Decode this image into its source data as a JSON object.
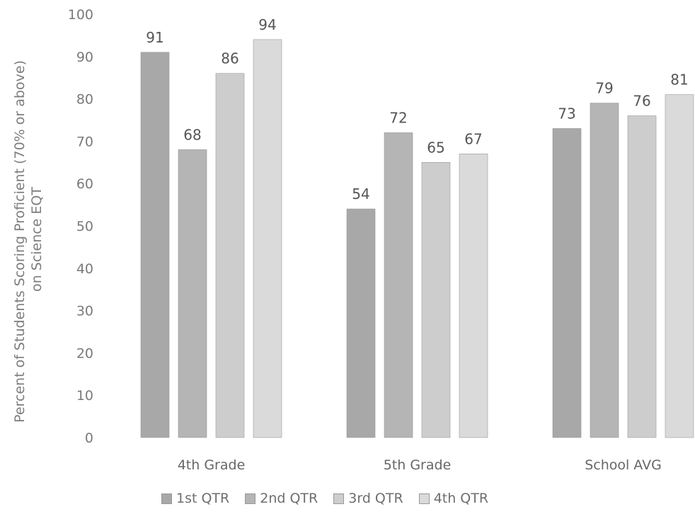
{
  "chart_data": {
    "type": "bar",
    "ylabel": [
      "Percent of Students Scoring Proficient (70% or above)",
      "on Science EQT"
    ],
    "ylim": [
      0,
      100
    ],
    "yticks": [
      0,
      10,
      20,
      30,
      40,
      50,
      60,
      70,
      80,
      90,
      100
    ],
    "categories": [
      "4th Grade",
      "5th Grade",
      "School AVG"
    ],
    "series": [
      {
        "name": "1st QTR",
        "values": [
          91,
          54,
          73
        ],
        "color": "#a8a8a8"
      },
      {
        "name": "2nd QTR",
        "values": [
          68,
          72,
          79
        ],
        "color": "#b5b5b5"
      },
      {
        "name": "3rd QTR",
        "values": [
          86,
          65,
          76
        ],
        "color": "#cdcdcd"
      },
      {
        "name": "4th QTR",
        "values": [
          94,
          67,
          81
        ],
        "color": "#dadada"
      }
    ],
    "legend": "bottom",
    "grid": false
  }
}
